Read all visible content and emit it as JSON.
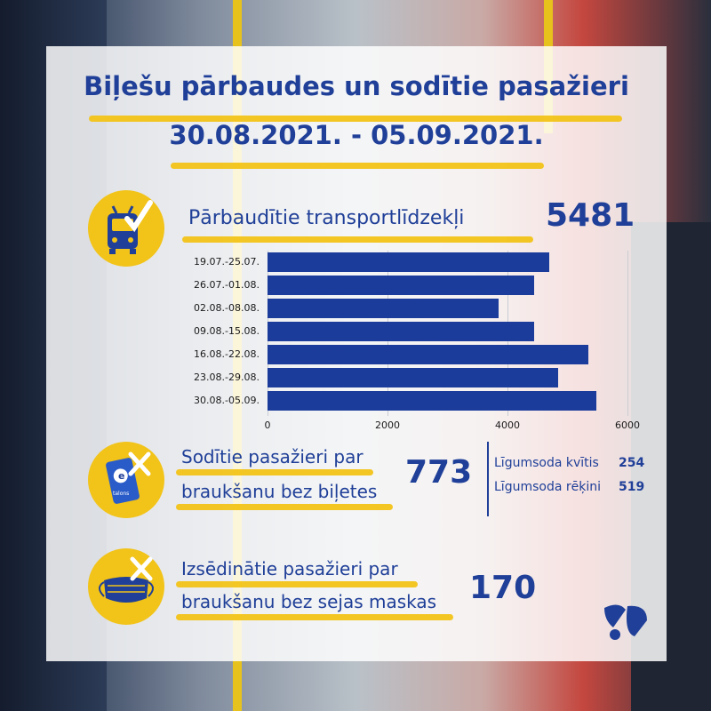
{
  "title_line1": "Biļešu pārbaudes un sodītie pasažieri",
  "title_line2": "30.08.2021. - 05.09.2021.",
  "vehicles": {
    "label": "Pārbaudītie transportlīdzekļi",
    "value": "5481",
    "icon": "bus-check-icon"
  },
  "fined": {
    "label_line1": "Sodītie pasažieri par",
    "label_line2": "braukšanu bez biļetes",
    "value": "773",
    "icon": "e-talons-card-icon",
    "card_text": "talons",
    "breakdown": [
      {
        "label": "Līgumsoda kvītis",
        "value": "254"
      },
      {
        "label": "Līgumsoda rēķini",
        "value": "519"
      }
    ]
  },
  "masks": {
    "label_line1": "Izsēdinātie pasažieri par",
    "label_line2": "braukšanu bez sejas maskas",
    "value": "170",
    "icon": "face-mask-icon"
  },
  "logo": "rigas-satiksme-logo",
  "colors": {
    "primary": "#1f3f98",
    "accent": "#f2c318",
    "bar": "#1c3c9b"
  },
  "chart_data": {
    "type": "bar",
    "orientation": "horizontal",
    "categories": [
      "19.07.-25.07.",
      "26.07.-01.08.",
      "02.08.-08.08.",
      "09.08.-15.08.",
      "16.08.-22.08.",
      "23.08.-29.08.",
      "30.08.-05.09."
    ],
    "values": [
      4700,
      4450,
      3850,
      4450,
      5350,
      4850,
      5481
    ],
    "xlim": [
      0,
      6000
    ],
    "xticks": [
      0,
      2000,
      4000,
      6000
    ],
    "grid": true,
    "legend": "none"
  }
}
